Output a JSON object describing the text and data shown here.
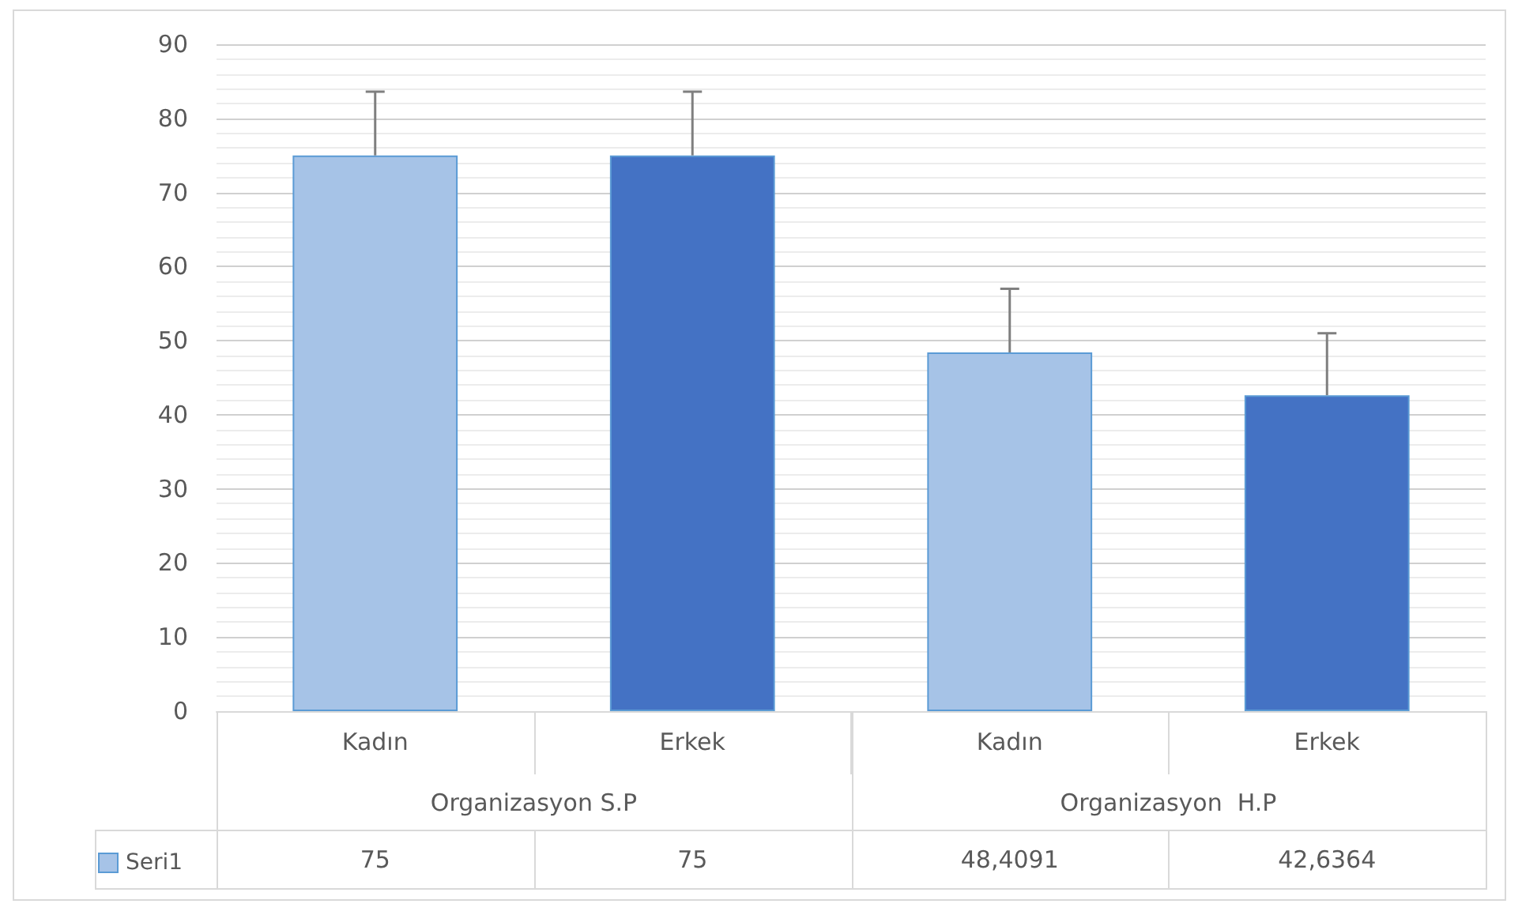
{
  "chart_data": {
    "type": "bar",
    "categories": [
      "Kadın",
      "Erkek",
      "Kadın",
      "Erkek"
    ],
    "annotations": [
      "Organizasyon S.P",
      "Organizasyon  H.P"
    ],
    "series": [
      {
        "name": "Seri1",
        "colors": [
          "#a6c3e7",
          "#4472c4",
          "#a6c3e7",
          "#4472c4"
        ],
        "values": [
          75,
          75,
          48.4091,
          42.6364
        ],
        "errors": [
          [
            75,
            83.6
          ],
          [
            75,
            83.6
          ],
          [
            48.4091,
            57
          ],
          [
            42.6364,
            51
          ]
        ],
        "value_labels": [
          "75",
          "75",
          "48,4091",
          "42,6364"
        ]
      }
    ],
    "ylim": [
      0,
      90
    ],
    "yticks": [
      0,
      10,
      20,
      30,
      40,
      50,
      60,
      70,
      80,
      90
    ],
    "grid": true,
    "legend": "bottom left"
  }
}
